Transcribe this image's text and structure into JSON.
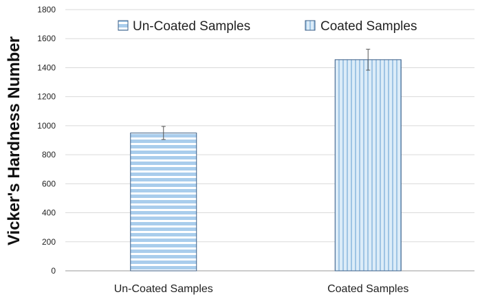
{
  "chart_data": {
    "type": "bar",
    "categories": [
      "Un-Coated Samples",
      "Coated Samples"
    ],
    "values": [
      950,
      1455
    ],
    "errors": [
      45,
      72
    ],
    "ylabel": "Vicker's Hardness Number",
    "xlabel": "",
    "ylim": [
      0,
      1800
    ],
    "yticks": [
      0,
      200,
      400,
      600,
      800,
      1000,
      1200,
      1400,
      1600,
      1800
    ],
    "grid": true,
    "legend": {
      "placement": "top",
      "entries": [
        "Un-Coated Samples",
        "Coated Samples"
      ]
    },
    "colors": {
      "uncoated_fill": "#a9cdec",
      "uncoated_stripe": "#ffffff",
      "coated_fill": "#dcecf8",
      "coated_stripe": "#9ec4e4",
      "bar_border": "#3a5d85"
    }
  }
}
